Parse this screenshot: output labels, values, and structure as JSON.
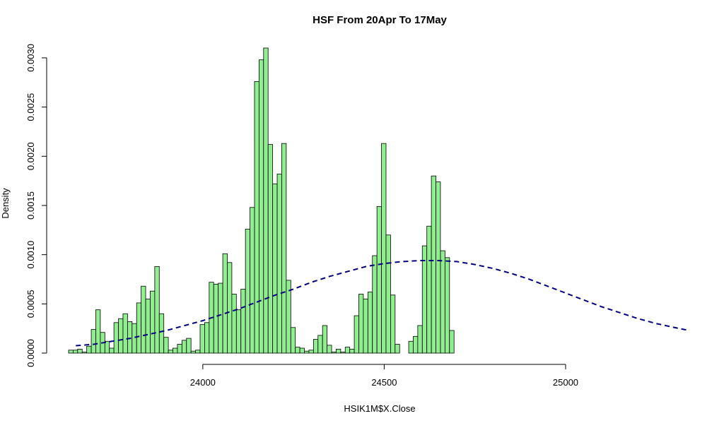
{
  "chart_data": {
    "type": "bar",
    "subtype": "histogram-with-density-curve",
    "title": "HSF From 20Apr To 17May",
    "xlabel": "HSIK1M$X.Close",
    "ylabel": "Density",
    "xlim": [
      23630,
      25345
    ],
    "ylim": [
      0,
      0.0031
    ],
    "x_ticks": [
      24000,
      24500,
      25000
    ],
    "y_ticks": [
      0.0,
      0.0005,
      0.001,
      0.0015,
      0.002,
      0.0025,
      0.003
    ],
    "y_tick_labels": [
      "0.0000",
      "0.0005",
      "0.0010",
      "0.0015",
      "0.0020",
      "0.0025",
      "0.0030"
    ],
    "grid": false,
    "legend": "none",
    "bin_start": 23630,
    "bin_width": 12.5,
    "bar_color": "#90EE90",
    "bar_edge_color": "#000000",
    "curve_color": "#00007F",
    "values": [
      3e-05,
      3e-05,
      4e-05,
      1e-05,
      7e-05,
      0.00024,
      0.00044,
      0.00021,
      0.00012,
      5e-05,
      0.00031,
      0.00035,
      0.0004,
      0.00032,
      0.0003,
      0.00051,
      0.00068,
      0.00055,
      0.00063,
      0.00088,
      0.0004,
      0.00016,
      3e-05,
      5e-05,
      9e-05,
      0.00013,
      0.00015,
      2e-05,
      3e-05,
      0.00029,
      0.00031,
      0.00072,
      0.0007,
      0.00071,
      0.00101,
      0.00092,
      0.0006,
      0.00044,
      0.00065,
      0.00126,
      0.00148,
      0.00276,
      0.00298,
      0.0031,
      0.00212,
      0.00172,
      0.00182,
      0.00213,
      0.00074,
      0.00026,
      6e-05,
      5e-05,
      2e-05,
      3e-05,
      0.00014,
      0.00018,
      0.00028,
      8e-05,
      1e-05,
      4e-05,
      1e-05,
      6e-05,
      4e-05,
      0.00038,
      0.0006,
      0.00055,
      0.00062,
      0.00099,
      0.00149,
      0.00213,
      0.0012,
      0.00059,
      9e-05,
      0.0,
      0.0,
      0.00012,
      0.00017,
      0.00028,
      0.00109,
      0.00129,
      0.0018,
      0.00174,
      0.00104,
      0.00097,
      0.00023
    ],
    "density_curve": {
      "style": "dashed",
      "x": [
        23650,
        23700,
        23750,
        23800,
        23850,
        23900,
        23950,
        24000,
        24050,
        24100,
        24150,
        24200,
        24250,
        24300,
        24350,
        24400,
        24450,
        24500,
        24550,
        24600,
        24650,
        24700,
        24750,
        24800,
        24850,
        24900,
        24950,
        25000,
        25050,
        25100,
        25150,
        25200,
        25250,
        25300,
        25340
      ],
      "y": [
        7.5e-05,
        9e-05,
        0.00012,
        0.00015,
        0.00019,
        0.00023,
        0.00028,
        0.00033,
        0.00039,
        0.00045,
        0.00052,
        0.00059,
        0.00065,
        0.00072,
        0.00078,
        0.00083,
        0.00088,
        0.00091,
        0.00093,
        0.00094,
        0.00094,
        0.00093,
        0.0009,
        0.00086,
        0.00081,
        0.00075,
        0.00068,
        0.00061,
        0.00054,
        0.00047,
        0.00041,
        0.00035,
        0.0003,
        0.00026,
        0.00023
      ]
    }
  }
}
